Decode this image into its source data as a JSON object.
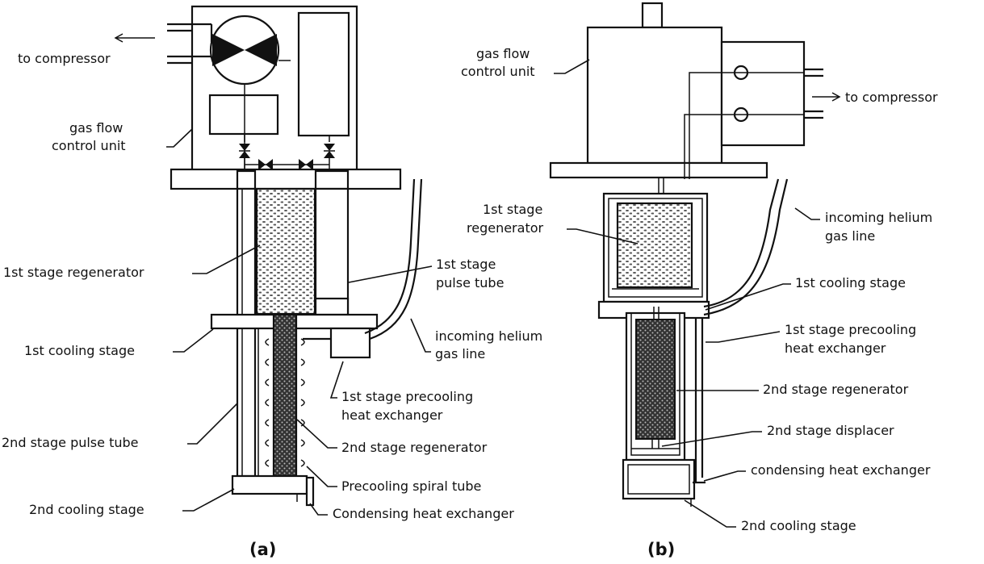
{
  "panel_a": {
    "caption": "(a)",
    "labels": {
      "to_compressor": "to compressor",
      "gfcu_1": "gas flow",
      "gfcu_2": "control unit",
      "regen1": "1st stage regenerator",
      "pt1_1": "1st stage",
      "pt1_2": "pulse tube",
      "cool1": "1st cooling stage",
      "helium_1": "incoming helium",
      "helium_2": "gas line",
      "precool_hx_1": "1st stage precooling",
      "precool_hx_2": "heat exchanger",
      "pt2": "2nd stage pulse tube",
      "regen2": "2nd stage regenerator",
      "spiral": "Precooling spiral tube",
      "cool2": "2nd cooling stage",
      "cond_hx": "Condensing heat exchanger"
    }
  },
  "panel_b": {
    "caption": "(b)",
    "labels": {
      "gfcu_1": "gas flow",
      "gfcu_2": "control unit",
      "to_compressor": "to compressor",
      "regen1_1": "1st stage",
      "regen1_2": "regenerator",
      "helium_1": "incoming helium",
      "helium_2": "gas line",
      "cool1": "1st cooling stage",
      "precool_hx_1": "1st stage precooling",
      "precool_hx_2": "heat exchanger",
      "regen2": "2nd stage regenerator",
      "displacer": "2nd stage displacer",
      "cond_hx": "condensing heat exchanger",
      "cool2": "2nd cooling stage"
    }
  }
}
